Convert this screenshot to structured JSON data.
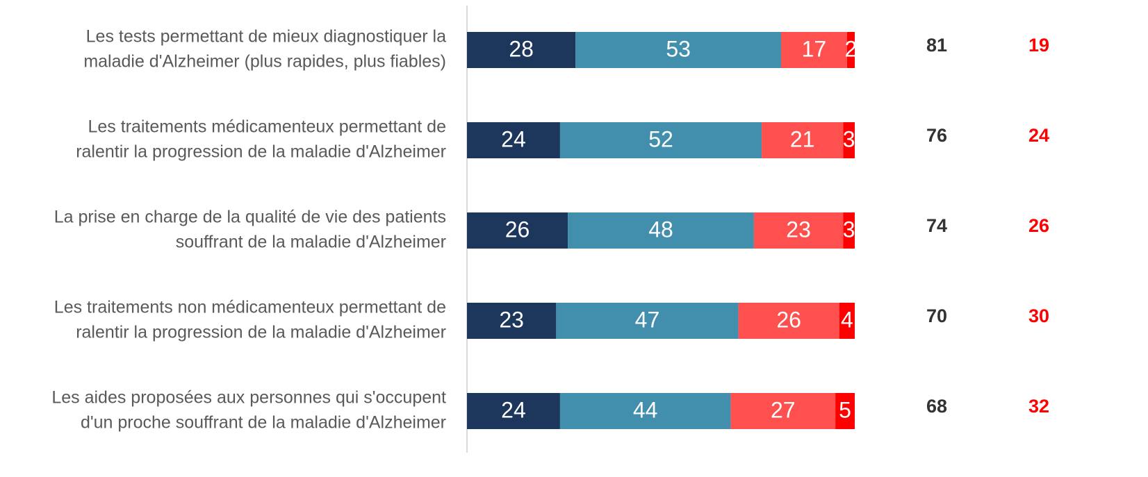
{
  "chart_data": {
    "type": "stacked-bar-horizontal",
    "categories": [
      [
        "Les tests permettant de mieux diagnostiquer la",
        "maladie d'Alzheimer (plus rapides, plus fiables)"
      ],
      [
        "Les traitements médicamenteux permettant de",
        "ralentir la progression de la maladie d'Alzheimer"
      ],
      [
        "La prise en charge de la qualité de vie des patients",
        "souffrant de la maladie d'Alzheimer"
      ],
      [
        "Les traitements non médicamenteux permettant de",
        "ralentir la progression de la maladie d'Alzheimer"
      ],
      [
        "Les aides proposées aux personnes qui s'occupent",
        "d'un proche souffrant de la maladie d'Alzheimer"
      ]
    ],
    "series": [
      {
        "color": "#1c365c",
        "values": [
          28,
          24,
          26,
          23,
          24
        ]
      },
      {
        "color": "#418fad",
        "values": [
          53,
          52,
          48,
          47,
          44
        ]
      },
      {
        "color": "#ff5050",
        "values": [
          17,
          21,
          23,
          26,
          27
        ]
      },
      {
        "color": "#ff0000",
        "values": [
          2,
          3,
          3,
          4,
          5
        ]
      }
    ],
    "positive_totals": [
      81,
      76,
      74,
      70,
      68
    ],
    "negative_totals": [
      19,
      24,
      26,
      30,
      32
    ],
    "xlim": [
      0,
      100
    ]
  }
}
